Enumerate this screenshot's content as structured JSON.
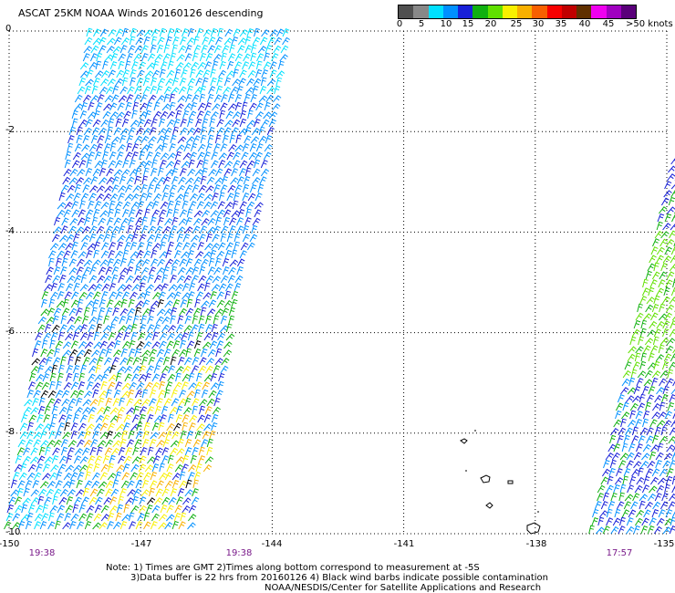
{
  "title": "ASCAT 25KM NOAA Winds 20160126 descending",
  "legend": {
    "colors": [
      "#505050",
      "#888888",
      "#00e0ff",
      "#0090ff",
      "#1820d8",
      "#10b010",
      "#60e000",
      "#f8f000",
      "#f8b000",
      "#f86000",
      "#f80000",
      "#c00000",
      "#603000",
      "#f000f0",
      "#a000c0",
      "#5a007a"
    ],
    "labels": [
      "0",
      "5",
      "10",
      "15",
      "20",
      "25",
      "30",
      "35",
      "40",
      "45",
      ">50 knots"
    ]
  },
  "y_axis": {
    "labels": [
      "0",
      "-2",
      "-4",
      "-6",
      "-8",
      "-10"
    ],
    "values": [
      0,
      -2,
      -4,
      -6,
      -8,
      -10
    ]
  },
  "x_axis": {
    "labels": [
      "-150",
      "-147",
      "-144",
      "-141",
      "-138",
      "-135"
    ],
    "values": [
      -150,
      -147,
      -144,
      -141,
      -138,
      -135
    ]
  },
  "map_extent": {
    "lon": [
      -150,
      -135
    ],
    "lat": [
      -10,
      0
    ]
  },
  "swath_times": [
    "19:38",
    "19:38",
    "17:57"
  ],
  "notes": [
    "Note: 1) Times are GMT 2)Times along bottom correspond to measurement at -5S",
    "3)Data buffer is 22 hrs from 20160126 4) Black wind barbs indicate possible contamination",
    "NOAA/NESDIS/Center for Satellite Applications and Research"
  ]
}
